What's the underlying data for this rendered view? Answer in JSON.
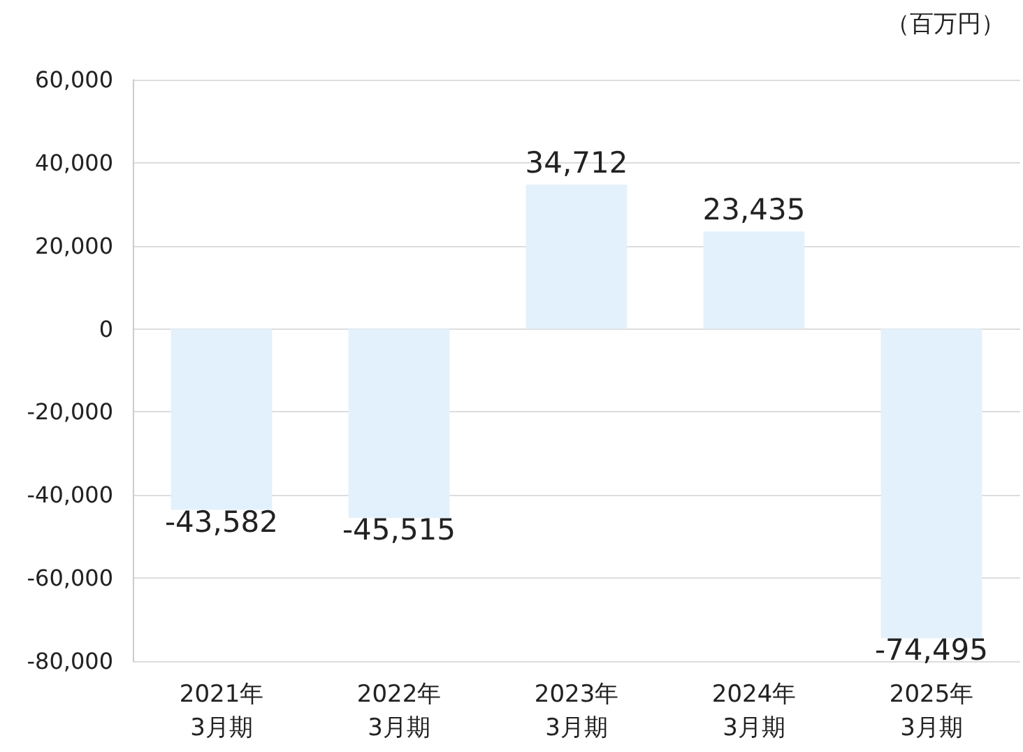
{
  "chart_data": {
    "type": "bar",
    "ylabel": "（百万円）",
    "categories": [
      "2021年\n3月期",
      "2022年\n3月期",
      "2023年\n3月期",
      "2024年\n3月期",
      "2025年\n3月期"
    ],
    "values": [
      -43582,
      -45515,
      34712,
      23435,
      -74495
    ],
    "value_labels": [
      "-43,582",
      "-45,515",
      "34,712",
      "23,435",
      "-74,495"
    ],
    "color": "#e3f1fc",
    "ylim": [
      -80000,
      60000
    ],
    "yticks": [
      {
        "value": -80000,
        "label": "-80,000"
      },
      {
        "value": -60000,
        "label": "-60,000"
      },
      {
        "value": -40000,
        "label": "-40,000"
      },
      {
        "value": -20000,
        "label": "-20,000"
      },
      {
        "value": 0,
        "label": "0"
      },
      {
        "value": 20000,
        "label": "20,000"
      },
      {
        "value": 40000,
        "label": "40,000"
      },
      {
        "value": 60000,
        "label": "60,000"
      }
    ],
    "grid": "y"
  }
}
